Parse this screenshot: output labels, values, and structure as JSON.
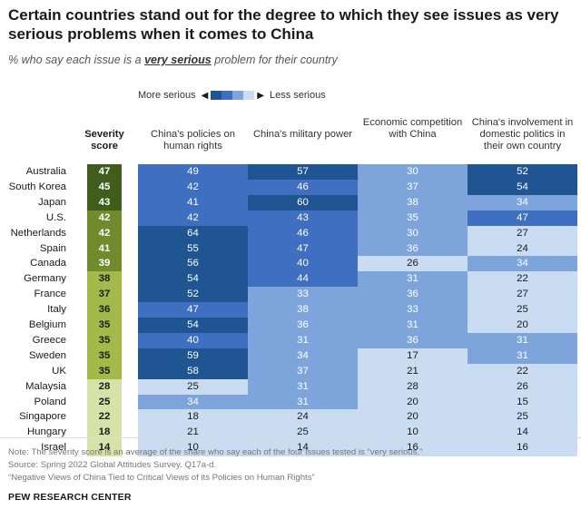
{
  "title": "Certain countries stand out for the degree to which they see issues as very serious problems when it comes to China",
  "subtitle_prefix": "% who say each issue is a",
  "subtitle_emphasis": "very serious",
  "subtitle_suffix": "problem for their country",
  "legend": {
    "more": "More serious",
    "less": "Less serious"
  },
  "colors": {
    "bins": [
      "#1f5592",
      "#3f6fc0",
      "#7da5dc",
      "#c9dcf1"
    ],
    "severity": [
      "#405d1c",
      "#6f8b2c",
      "#a3b949",
      "#d5e3a9"
    ]
  },
  "chart_data": {
    "type": "table",
    "title": "Certain countries stand out for the degree to which they see issues as very serious problems when it comes to China",
    "severity_header": "Severity score",
    "columns": [
      "China's policies on human rights",
      "China's military power",
      "Economic competition with China",
      "China's involvement in domestic politics in their own country"
    ],
    "rows": [
      {
        "country": "Australia",
        "severity": 47,
        "values": [
          49,
          57,
          30,
          52
        ]
      },
      {
        "country": "South Korea",
        "severity": 45,
        "values": [
          42,
          46,
          37,
          54
        ]
      },
      {
        "country": "Japan",
        "severity": 43,
        "values": [
          41,
          60,
          38,
          34
        ]
      },
      {
        "country": "U.S.",
        "severity": 42,
        "values": [
          42,
          43,
          35,
          47
        ]
      },
      {
        "country": "Netherlands",
        "severity": 42,
        "values": [
          64,
          46,
          30,
          27
        ]
      },
      {
        "country": "Spain",
        "severity": 41,
        "values": [
          55,
          47,
          36,
          24
        ]
      },
      {
        "country": "Canada",
        "severity": 39,
        "values": [
          56,
          40,
          26,
          34
        ]
      },
      {
        "country": "Germany",
        "severity": 38,
        "values": [
          54,
          44,
          31,
          22
        ]
      },
      {
        "country": "France",
        "severity": 37,
        "values": [
          52,
          33,
          36,
          27
        ]
      },
      {
        "country": "Italy",
        "severity": 36,
        "values": [
          47,
          38,
          33,
          25
        ]
      },
      {
        "country": "Belgium",
        "severity": 35,
        "values": [
          54,
          36,
          31,
          20
        ]
      },
      {
        "country": "Greece",
        "severity": 35,
        "values": [
          40,
          31,
          36,
          31
        ]
      },
      {
        "country": "Sweden",
        "severity": 35,
        "values": [
          59,
          34,
          17,
          31
        ]
      },
      {
        "country": "UK",
        "severity": 35,
        "values": [
          58,
          37,
          21,
          22
        ]
      },
      {
        "country": "Malaysia",
        "severity": 28,
        "values": [
          25,
          31,
          28,
          26
        ]
      },
      {
        "country": "Poland",
        "severity": 25,
        "values": [
          34,
          31,
          20,
          15
        ]
      },
      {
        "country": "Singapore",
        "severity": 22,
        "values": [
          18,
          24,
          20,
          25
        ]
      },
      {
        "country": "Hungary",
        "severity": 18,
        "values": [
          21,
          25,
          10,
          14
        ]
      },
      {
        "country": "Israel",
        "severity": 14,
        "values": [
          10,
          14,
          16,
          16
        ]
      }
    ]
  },
  "notes": {
    "note": "Note: The severity score is an average of the share who say each of the four issues tested is “very serious.”",
    "source": "Source: Spring 2022 Global Attitudes Survey. Q17a-d.",
    "report": "“Negative Views of China Tied to Critical Views of its Policies on Human Rights”"
  },
  "brand": "PEW RESEARCH CENTER"
}
